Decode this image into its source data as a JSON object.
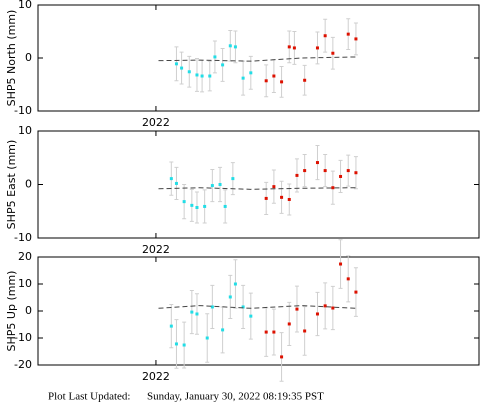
{
  "chart_data": [
    {
      "type": "scatter",
      "ylabel": "SHP5 North (mm)",
      "xlim": [
        2021.954,
        2022.126
      ],
      "xticks": [
        2022
      ],
      "ylim": [
        -10,
        10
      ],
      "yticks": [
        -10,
        0,
        10
      ],
      "series": [
        {
          "mode": "points",
          "color": "#22dde6",
          "x": [
            2022.008,
            2022.01,
            2022.013,
            2022.016,
            2022.018,
            2022.021,
            2022.023,
            2022.026,
            2022.029,
            2022.031,
            2022.034,
            2022.037
          ],
          "values": [
            -1.1,
            -1.9,
            -2.6,
            -3.2,
            -3.4,
            -3.4,
            0.2,
            -1.3,
            2.3,
            2.1,
            -3.8,
            -2.8
          ],
          "errors": [
            3.2,
            3.0,
            2.9,
            3.1,
            3.0,
            2.8,
            3.0,
            3.1,
            2.9,
            3.0,
            3.2,
            3.1
          ]
        },
        {
          "mode": "points",
          "color": "#dd1100",
          "x": [
            2022.043,
            2022.046,
            2022.049,
            2022.052,
            2022.054,
            2022.058,
            2022.063,
            2022.066,
            2022.069,
            2022.075,
            2022.078
          ],
          "values": [
            -4.3,
            -3.4,
            -4.5,
            2.1,
            1.9,
            -4.2,
            1.9,
            4.2,
            0.9,
            4.5,
            3.6
          ],
          "errors": [
            3.0,
            3.1,
            2.9,
            3.0,
            3.1,
            2.8,
            3.0,
            3.1,
            3.0,
            2.9,
            3.0
          ]
        },
        {
          "mode": "line",
          "color": "#444444",
          "x": [
            2022.001,
            2022.017,
            2022.037,
            2022.057,
            2022.078
          ],
          "values": [
            -0.5,
            -0.4,
            -0.6,
            0.0,
            0.2
          ]
        }
      ]
    },
    {
      "type": "scatter",
      "ylabel": "SHP5 East (mm)",
      "xlim": [
        2021.954,
        2022.126
      ],
      "xticks": [
        2022
      ],
      "ylim": [
        -10,
        10
      ],
      "yticks": [
        -10,
        0,
        10
      ],
      "series": [
        {
          "mode": "points",
          "color": "#22dde6",
          "x": [
            2022.006,
            2022.008,
            2022.011,
            2022.014,
            2022.016,
            2022.019,
            2022.022,
            2022.025,
            2022.027,
            2022.03
          ],
          "values": [
            1.1,
            0.2,
            -3.2,
            -3.9,
            -4.3,
            -4.1,
            -0.2,
            0.0,
            -4.1,
            1.1
          ],
          "errors": [
            3.1,
            3.0,
            3.2,
            3.0,
            2.9,
            3.1,
            3.0,
            3.2,
            3.1,
            3.0
          ]
        },
        {
          "mode": "points",
          "color": "#dd1100",
          "x": [
            2022.043,
            2022.046,
            2022.049,
            2022.052,
            2022.055,
            2022.058,
            2022.063,
            2022.066,
            2022.069,
            2022.072,
            2022.075,
            2022.078
          ],
          "values": [
            -2.6,
            -0.4,
            -2.4,
            -2.8,
            1.7,
            2.6,
            4.1,
            2.6,
            -0.6,
            1.5,
            2.6,
            2.2
          ],
          "errors": [
            3.0,
            3.1,
            3.0,
            2.9,
            3.1,
            3.0,
            3.2,
            3.0,
            3.1,
            3.0,
            2.9,
            3.0
          ]
        },
        {
          "mode": "line",
          "color": "#444444",
          "x": [
            2022.001,
            2022.017,
            2022.037,
            2022.057,
            2022.078
          ],
          "values": [
            -0.8,
            -0.6,
            -0.9,
            -0.7,
            -0.6
          ]
        }
      ]
    },
    {
      "type": "scatter",
      "ylabel": "SHP5 Up (mm)",
      "xlim": [
        2021.954,
        2022.126
      ],
      "xticks": [
        2022
      ],
      "ylim": [
        -20,
        20
      ],
      "yticks": [
        -20,
        -10,
        0,
        10,
        20
      ],
      "series": [
        {
          "mode": "points",
          "color": "#22dde6",
          "x": [
            2022.006,
            2022.008,
            2022.011,
            2022.014,
            2022.016,
            2022.02,
            2022.022,
            2022.026,
            2022.029,
            2022.031,
            2022.034,
            2022.037
          ],
          "values": [
            -5.6,
            -12.2,
            -12.6,
            -0.4,
            -1.1,
            -10.0,
            1.5,
            -7.0,
            5.2,
            10.0,
            1.5,
            -1.9
          ],
          "errors": [
            8.0,
            9.0,
            8.5,
            8.0,
            7.5,
            9.0,
            8.0,
            8.5,
            8.0,
            9.0,
            8.0,
            8.5
          ]
        },
        {
          "mode": "points",
          "color": "#dd1100",
          "x": [
            2022.043,
            2022.046,
            2022.049,
            2022.052,
            2022.055,
            2022.058,
            2022.063,
            2022.066,
            2022.069,
            2022.072,
            2022.075,
            2022.078
          ],
          "values": [
            -7.8,
            -7.8,
            -17.0,
            -4.8,
            0.7,
            -7.4,
            -1.1,
            1.9,
            1.1,
            17.4,
            11.9,
            7.0
          ],
          "errors": [
            9.0,
            8.5,
            9.0,
            8.0,
            8.5,
            9.0,
            8.0,
            8.5,
            8.0,
            9.0,
            8.5,
            9.0
          ]
        },
        {
          "mode": "line",
          "color": "#444444",
          "x": [
            2022.001,
            2022.017,
            2022.037,
            2022.057,
            2022.078
          ],
          "values": [
            1.0,
            2.0,
            1.0,
            2.0,
            1.0
          ]
        }
      ]
    }
  ],
  "footer": {
    "label": "Plot Last Updated:",
    "value": "Sunday, January 30, 2022 08:19:35 PST"
  }
}
